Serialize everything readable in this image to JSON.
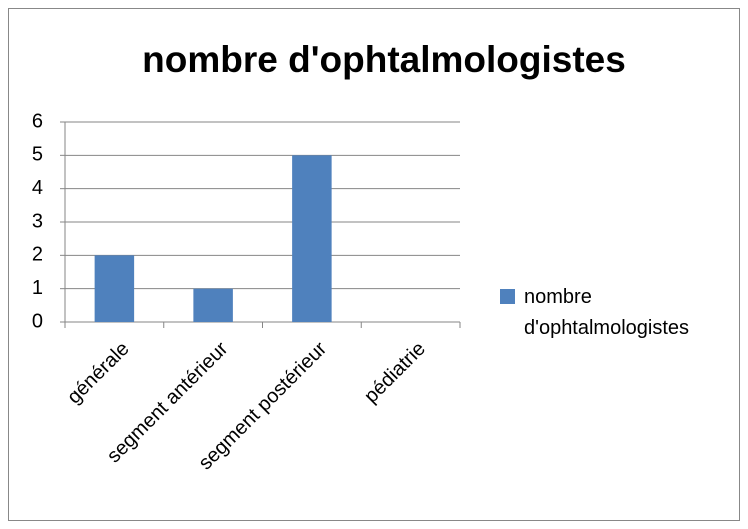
{
  "chart_data": {
    "type": "bar",
    "title": "nombre d'ophtalmologistes",
    "categories": [
      "générale",
      "segment antérieur",
      "segment postérieur",
      "pédiatrie"
    ],
    "series": [
      {
        "name": "nombre d'ophtalmologistes",
        "color": "#4f81bd",
        "values": [
          2,
          1,
          5,
          0
        ]
      }
    ],
    "ylim": [
      0,
      6
    ],
    "yticks": [
      0,
      1,
      2,
      3,
      4,
      5,
      6
    ],
    "grid": true,
    "legend": "right"
  }
}
